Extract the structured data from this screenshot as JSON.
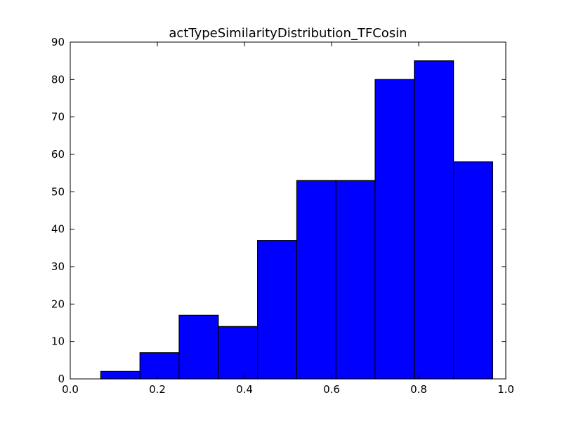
{
  "chart_data": {
    "type": "bar",
    "title": "actTypeSimilarityDistribution_TFCosin",
    "xlabel": "",
    "ylabel": "",
    "bin_edges": [
      0.07,
      0.16,
      0.25,
      0.34,
      0.43,
      0.52,
      0.61,
      0.7,
      0.79,
      0.88,
      0.97
    ],
    "values": [
      2,
      7,
      17,
      14,
      37,
      53,
      53,
      80,
      85,
      58
    ],
    "xlim": [
      0.0,
      1.0
    ],
    "ylim": [
      0,
      90
    ],
    "xticks": [
      0.0,
      0.2,
      0.4,
      0.6,
      0.8,
      1.0
    ],
    "xtick_labels": [
      "0.0",
      "0.2",
      "0.4",
      "0.6",
      "0.8",
      "1.0"
    ],
    "yticks": [
      0,
      10,
      20,
      30,
      40,
      50,
      60,
      70,
      80,
      90
    ],
    "ytick_labels": [
      "0",
      "10",
      "20",
      "30",
      "40",
      "50",
      "60",
      "70",
      "80",
      "90"
    ],
    "grid": false,
    "bar_color": "#0000ff",
    "edge_color": "#000000"
  }
}
